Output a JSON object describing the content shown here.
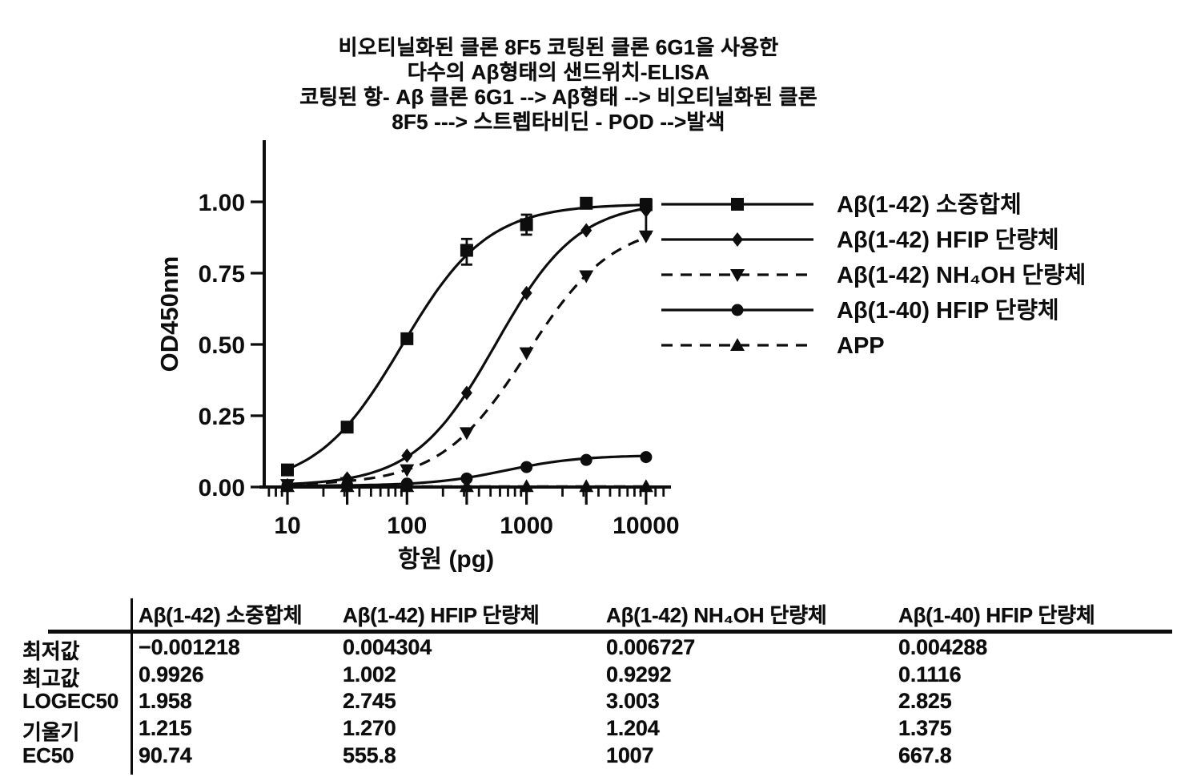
{
  "page": {
    "background": "#ffffff",
    "ink": "#0d0d0d"
  },
  "title": {
    "lines": [
      "비오티닐화된 클론 8F5 코팅된 클론 6G1을 사용한",
      "다수의 Aβ형태의 샌드위치-ELISA",
      "코팅된 항- Aβ 클론 6G1 --> Aβ형태 --> 비오티닐화된 클론",
      "8F5 ---> 스트렙타비딘 - POD -->발색"
    ]
  },
  "chart_data": {
    "type": "line",
    "title": "",
    "xlabel": "항원 (pg)",
    "ylabel": "OD450nm",
    "x_scale": "log",
    "xlim": [
      7,
      16000
    ],
    "ylim": [
      0,
      1.1
    ],
    "grid": false,
    "legend_position": "right",
    "x_ticks": [
      10,
      100,
      1000,
      10000
    ],
    "y_ticks": [
      "0.00",
      "0.25",
      "0.50",
      "0.75",
      "1.00"
    ],
    "x": [
      10,
      31.6,
      100,
      316,
      1000,
      3162,
      10000
    ],
    "series": [
      {
        "name": "Aβ(1-42)  소중합체",
        "marker": "square",
        "line": "solid",
        "values": [
          0.06,
          0.21,
          0.52,
          0.83,
          0.92,
          0.995,
          0.99
        ],
        "fit": {
          "bottom": -0.001218,
          "top": 0.9926,
          "logec50": 1.958,
          "slope": 1.215,
          "ec50": 90.74
        }
      },
      {
        "name": "Aβ(1-42)  HFIP  단량체",
        "marker": "diamond",
        "line": "solid",
        "values": [
          0.006,
          0.03,
          0.11,
          0.33,
          0.68,
          0.9,
          0.97
        ],
        "fit": {
          "bottom": 0.004304,
          "top": 1.002,
          "logec50": 2.745,
          "slope": 1.27,
          "ec50": 555.8
        }
      },
      {
        "name": "Aβ(1-42)  NH₄OH 단량체",
        "marker": "triangle-down",
        "line": "dashed",
        "values": [
          0.008,
          0.015,
          0.06,
          0.19,
          0.47,
          0.74,
          0.88
        ],
        "fit": {
          "bottom": 0.006727,
          "top": 0.9292,
          "logec50": 3.003,
          "slope": 1.204,
          "ec50": 1007
        }
      },
      {
        "name": "Aβ(1-40)  HFIP 단량체",
        "marker": "circle",
        "line": "solid",
        "values": [
          0.005,
          0.007,
          0.012,
          0.03,
          0.07,
          0.095,
          0.105
        ],
        "fit": {
          "bottom": 0.004288,
          "top": 0.1116,
          "logec50": 2.825,
          "slope": 1.375,
          "ec50": 667.8
        }
      },
      {
        "name": "APP",
        "marker": "triangle-up",
        "line": "dashed",
        "values": [
          0.002,
          0.002,
          0.002,
          0.002,
          0.002,
          0.002,
          0.002
        ],
        "fit": null
      }
    ],
    "error_bars": [
      {
        "series": 0,
        "x": 316,
        "low": 0.78,
        "high": 0.87
      },
      {
        "series": 0,
        "x": 1000,
        "low": 0.885,
        "high": 0.955
      },
      {
        "series": 0,
        "x": 10000,
        "low": 0.89,
        "high": 1.01
      }
    ]
  },
  "table": {
    "columns": [
      "Aβ(1-42) 소중합체",
      "Aβ(1-42)  HFIP 단량체",
      "Aβ(1-42)  NH₄OH 단량체",
      "Aβ(1-40)  HFIP 단량체"
    ],
    "rows": [
      {
        "label": "최저값",
        "values": [
          "−0.001218",
          "0.004304",
          "0.006727",
          "0.004288"
        ]
      },
      {
        "label": "최고값",
        "values": [
          "0.9926",
          "1.002",
          "0.9292",
          "0.1116"
        ]
      },
      {
        "label": "LOGEC50",
        "values": [
          "1.958",
          "2.745",
          "3.003",
          "2.825"
        ]
      },
      {
        "label": "기울기",
        "values": [
          "1.215",
          "1.270",
          "1.204",
          "1.375"
        ]
      },
      {
        "label": "EC50",
        "values": [
          "90.74",
          "555.8",
          "1007",
          "667.8"
        ]
      }
    ]
  }
}
